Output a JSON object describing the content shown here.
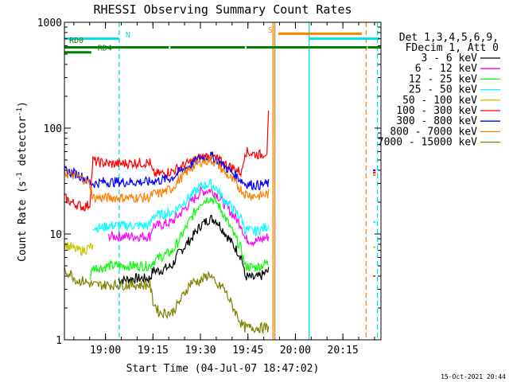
{
  "chart_data": {
    "type": "line",
    "title": "RHESSI Observing Summary Count Rates",
    "xlabel": "Start Time (04-Jul-07 18:47:02)",
    "ylabel": "Count Rate (s",
    "ylabel_sup": "-1",
    "ylabel_mid": " detector",
    "ylabel_end": ")",
    "y_scale": "log",
    "ylim": [
      1,
      1000
    ],
    "x_units": "minutes since 18:47:02",
    "xlim": [
      0,
      100
    ],
    "x_ticks": [
      {
        "value": 12.97,
        "label": "19:00"
      },
      {
        "value": 27.97,
        "label": "19:15"
      },
      {
        "value": 42.97,
        "label": "19:30"
      },
      {
        "value": 57.97,
        "label": "19:45"
      },
      {
        "value": 72.97,
        "label": "20:00"
      },
      {
        "value": 87.97,
        "label": "20:15"
      }
    ],
    "y_ticks": [
      {
        "value": 1,
        "label": "1"
      },
      {
        "value": 10,
        "label": "10"
      },
      {
        "value": 100,
        "label": "100"
      },
      {
        "value": 1000,
        "label": "1000"
      }
    ],
    "legend_header": [
      "Det 1,3,4,5,6,9,",
      "FDecim 1, Att 0"
    ],
    "legend_position": "right",
    "series": [
      {
        "name": "3 - 6 keV",
        "color": "#000000",
        "x": [
          17,
          19,
          22,
          27,
          28,
          30,
          34,
          36,
          40,
          43,
          46,
          48,
          50,
          56,
          57,
          60,
          62,
          64.6
        ],
        "y": [
          3.7,
          3.7,
          3.8,
          3.8,
          4.5,
          4.5,
          5,
          6.5,
          9,
          12,
          14,
          13.5,
          11,
          6,
          4,
          3.8,
          4,
          4.5
        ]
      },
      {
        "name": "6 - 12 keV",
        "color": "#ff00ff",
        "x": [
          0,
          7,
          9,
          12,
          14,
          17,
          22,
          27,
          28,
          30,
          34,
          36,
          40,
          43,
          46,
          48,
          50,
          56,
          57,
          60,
          62,
          64.6
        ],
        "y": [
          null,
          null,
          null,
          null,
          9.5,
          9.5,
          9.5,
          9.5,
          12,
          12,
          13,
          15,
          20,
          25,
          26,
          24,
          20,
          12,
          9,
          8.5,
          8.8,
          9.5
        ]
      },
      {
        "name": "12 - 25 keV",
        "color": "#00ff00",
        "x": [
          8,
          9,
          10,
          12,
          14,
          17,
          22,
          27,
          28,
          30,
          34,
          36,
          40,
          43,
          46,
          48,
          50,
          56,
          57,
          60,
          62,
          64.6
        ],
        "y": [
          3.8,
          4.8,
          4.8,
          4.8,
          5,
          5,
          5,
          5,
          5.5,
          6,
          6.8,
          8.5,
          14,
          20,
          22,
          20,
          16,
          7,
          5,
          4.8,
          5,
          5.4
        ]
      },
      {
        "name": "25 - 50 keV",
        "color": "#00ffff",
        "x": [
          9,
          10,
          12,
          14,
          17,
          22,
          27,
          28,
          30,
          34,
          36,
          40,
          43,
          46,
          48,
          50,
          56,
          57,
          60,
          62,
          64.6
        ],
        "y": [
          12,
          11.5,
          11.5,
          12,
          12,
          12,
          12,
          15,
          15,
          16,
          18,
          23,
          28,
          30,
          27,
          22,
          14,
          11,
          10.5,
          11,
          12
        ]
      },
      {
        "name": "50 - 100 keV",
        "color": "#c8c800",
        "x": [
          0,
          2,
          4,
          6,
          8,
          9
        ],
        "y": [
          8,
          7.5,
          7,
          7,
          7.5,
          7.5
        ]
      },
      {
        "name": "100 - 300 keV",
        "color": "#ff0000",
        "x": [
          0,
          1,
          2,
          4,
          6,
          8,
          9,
          10,
          12,
          14,
          17,
          22,
          27,
          28,
          30,
          34,
          36,
          40,
          43,
          46,
          48,
          50,
          56,
          57,
          60,
          62,
          64,
          64.6
        ],
        "y": [
          22,
          21,
          20,
          19,
          18,
          19,
          50,
          48,
          47,
          46,
          46,
          47,
          47,
          37,
          37,
          39,
          42,
          48,
          53,
          55,
          52,
          47,
          38,
          60,
          57,
          56,
          60,
          155
        ]
      },
      {
        "name": "300 - 800 keV",
        "color": "#0000ff",
        "x": [
          0,
          2,
          4,
          6,
          8,
          9,
          10,
          12,
          14,
          17,
          22,
          27,
          28,
          30,
          34,
          36,
          40,
          43,
          46,
          48,
          50,
          56,
          57,
          60,
          62,
          64.6
        ],
        "y": [
          40,
          38,
          37,
          34,
          31,
          30,
          30,
          31,
          31,
          31,
          31,
          31,
          32,
          32,
          34,
          38,
          45,
          52,
          55,
          51,
          45,
          32,
          30,
          29,
          29,
          30
        ]
      },
      {
        "name": "800 - 7000 keV",
        "color": "#ff8000",
        "x": [
          0,
          2,
          4,
          6,
          8,
          9,
          10,
          12,
          14,
          17,
          22,
          27,
          28,
          30,
          34,
          36,
          40,
          43,
          46,
          48,
          50,
          56,
          57,
          60,
          62,
          64.6
        ],
        "y": [
          38,
          36,
          35,
          33,
          30,
          22,
          22,
          22,
          22,
          22,
          22,
          22,
          24,
          24,
          27,
          32,
          42,
          48,
          50,
          47,
          40,
          26,
          24,
          23,
          23,
          24
        ]
      },
      {
        "name": "7000 - 15000 keV",
        "color": "#808000",
        "x": [
          0,
          2,
          4,
          6,
          8,
          9,
          10,
          12,
          14,
          17,
          22,
          27,
          28,
          30,
          34,
          36,
          40,
          43,
          46,
          48,
          50,
          56,
          57,
          60,
          62,
          64.6
        ],
        "y": [
          4.5,
          4.2,
          3.6,
          3.6,
          3.4,
          3.3,
          3.3,
          3.3,
          3.3,
          3.3,
          3.3,
          3.3,
          2.3,
          1.8,
          1.8,
          2.2,
          3.5,
          3.6,
          4.2,
          3.2,
          3.2,
          1.4,
          1.3,
          1.3,
          1.3,
          1.3
        ]
      }
    ],
    "series_tail": [
      {
        "color": "#ff0000",
        "x": [
          97.5,
          98.3
        ],
        "y": [
          38,
          38
        ]
      },
      {
        "color": "#0000ff",
        "x": [
          97.5,
          98.3
        ],
        "y": [
          40,
          40
        ]
      },
      {
        "color": "#ff8000",
        "x": [
          97.5,
          98.3
        ],
        "y": [
          36,
          36
        ]
      },
      {
        "color": "#00ffff",
        "x": [
          97.5,
          98.3
        ],
        "y": [
          13,
          13
        ]
      },
      {
        "color": "#c8c800",
        "x": [
          97.5,
          98.3
        ],
        "y": [
          7.5,
          7.5
        ]
      },
      {
        "color": "#808000",
        "x": [
          97.5,
          98.3
        ],
        "y": [
          4,
          4
        ]
      }
    ],
    "vertical_lines": [
      {
        "x": 17.3,
        "color": "#00e0e0",
        "style": "dashed"
      },
      {
        "x": 65.9,
        "color": "#ff8000",
        "style": "solid"
      },
      {
        "x": 66.5,
        "color": "#ff8000",
        "style": "solid"
      },
      {
        "x": 77.3,
        "color": "#00e0e0",
        "style": "solid"
      },
      {
        "x": 95.3,
        "color": "#ff8000",
        "style": "dashed"
      },
      {
        "x": 98.9,
        "color": "#00e0e0",
        "style": "dashed"
      }
    ],
    "flag_bars": [
      {
        "color": "#00e0e0",
        "segments": [
          [
            0,
            17.3
          ],
          [
            77.3,
            99.5
          ]
        ],
        "y": 700
      },
      {
        "color": "#ff8000",
        "segments": [
          [
            67.5,
            94
          ]
        ],
        "y": 780
      },
      {
        "color": "#008000",
        "segments": [
          [
            0,
            33
          ],
          [
            33.5,
            57
          ],
          [
            57.5,
            95.5
          ],
          [
            95.8,
            100
          ]
        ],
        "y": 580
      },
      {
        "color": "#008000",
        "segments": [
          [
            0,
            8.5
          ]
        ],
        "y": 520
      }
    ],
    "annotations": [
      {
        "text": "N",
        "x": 19.3,
        "y": 720,
        "color": "#00e0e0"
      },
      {
        "text": "S",
        "x": 64.3,
        "y": 800,
        "color": "#ff8000"
      },
      {
        "text": "RD0",
        "x": 1.5,
        "y": 640,
        "color": "#008000"
      },
      {
        "text": "RD4",
        "x": 10.5,
        "y": 540,
        "color": "#008000"
      }
    ],
    "timestamp": "15-Oct-2021 20:44"
  }
}
